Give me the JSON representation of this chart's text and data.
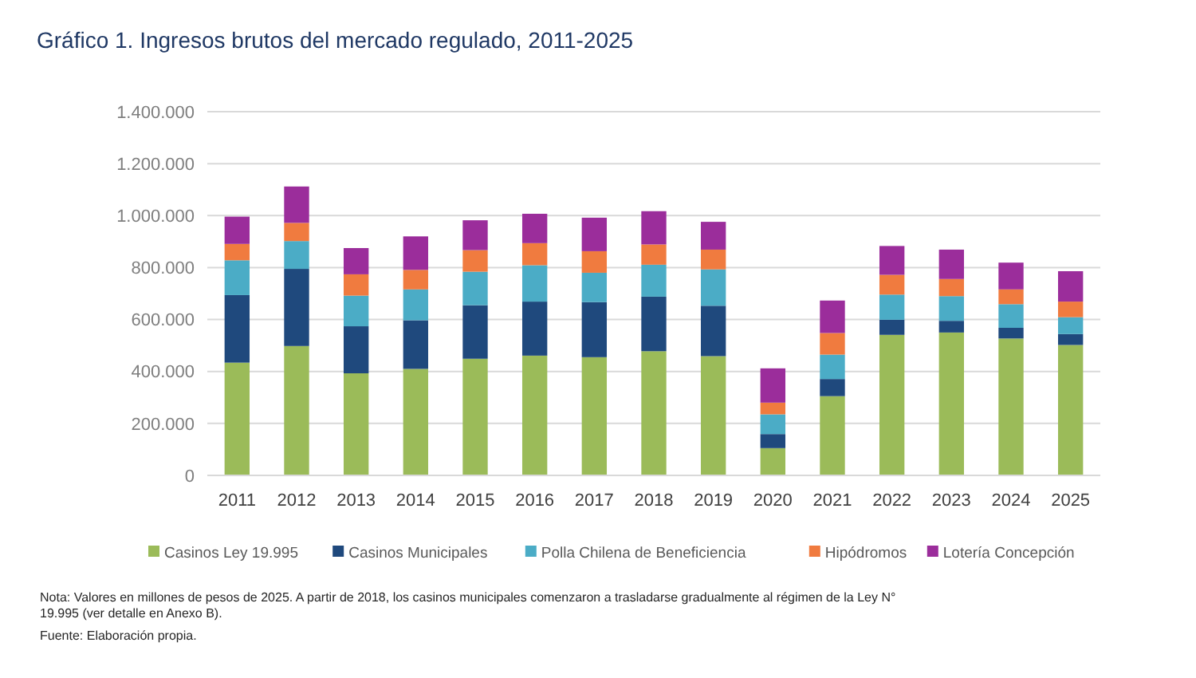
{
  "chart_data": {
    "type": "bar",
    "stacked": true,
    "title": "Gráfico 1. Ingresos brutos del mercado regulado, 2011-2025",
    "categories": [
      "2011",
      "2012",
      "2013",
      "2014",
      "2015",
      "2016",
      "2017",
      "2018",
      "2019",
      "2020",
      "2021",
      "2022",
      "2023",
      "2024",
      "2025"
    ],
    "series": [
      {
        "name": "Casinos Ley 19.995",
        "color": "#9bbb59",
        "values": [
          434000,
          498000,
          393000,
          410000,
          449000,
          461000,
          455000,
          478000,
          459000,
          105000,
          305000,
          541000,
          550000,
          527000,
          502000
        ]
      },
      {
        "name": "Casinos Municipales",
        "color": "#1f497d",
        "values": [
          260000,
          297000,
          181000,
          187000,
          206000,
          208000,
          212000,
          210000,
          194000,
          54000,
          66000,
          58000,
          45000,
          41000,
          42000
        ]
      },
      {
        "name": "Polla Chilena de Beneficiencia",
        "color": "#4bacc6",
        "values": [
          134000,
          107000,
          118000,
          119000,
          129000,
          140000,
          113000,
          123000,
          140000,
          76000,
          94000,
          97000,
          95000,
          91000,
          65000
        ]
      },
      {
        "name": "Hipódromos",
        "color": "#f07b3f",
        "values": [
          63000,
          70000,
          82000,
          75000,
          83000,
          85000,
          83000,
          78000,
          76000,
          45000,
          83000,
          76000,
          66000,
          57000,
          60000
        ]
      },
      {
        "name": "Lotería Concepción",
        "color": "#9b2d9b",
        "values": [
          105000,
          140000,
          101000,
          129000,
          115000,
          113000,
          129000,
          128000,
          107000,
          132000,
          125000,
          111000,
          113000,
          103000,
          117000
        ]
      }
    ],
    "ylim": [
      0,
      1400000
    ],
    "yticks": [
      0,
      {
        "value": 200000,
        "label": "200.000"
      },
      {
        "value": 400000,
        "label": "400.000"
      },
      {
        "value": 600000,
        "label": "600.000"
      },
      {
        "value": 800000,
        "label": "800.000"
      },
      {
        "value": 1000000,
        "label": "1.000.000"
      },
      {
        "value": 1200000,
        "label": "1.200.000"
      },
      {
        "value": 1400000,
        "label": "1.400.000"
      }
    ],
    "grid": "y",
    "legend": "bottom",
    "annotations": [
      "Nota: Valores en millones de pesos de 2025. A partir de 2018, los casinos municipales comenzaron a trasladarse gradualmente al régimen de la Ley N° 19.995 (ver detalle en Anexo B).",
      "Fuente: Elaboración propia."
    ]
  }
}
